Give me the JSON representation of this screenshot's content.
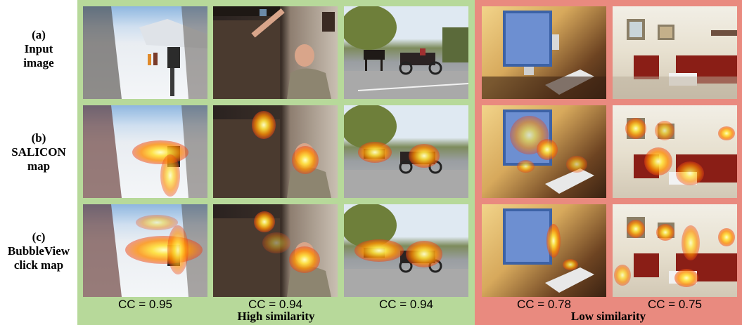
{
  "row_labels": [
    {
      "letter": "(a)",
      "line1": "Input",
      "line2": "image"
    },
    {
      "letter": "(b)",
      "line1": "SALICON",
      "line2": "map"
    },
    {
      "letter": "(c)",
      "line1": "BubbleView",
      "line2": "click map"
    }
  ],
  "columns": [
    {
      "scene": "snow-hikers",
      "cc": "CC = 0.95"
    },
    {
      "scene": "man-reaching",
      "cc": "CC = 0.94"
    },
    {
      "scene": "horse-carriage",
      "cc": "CC = 0.94"
    },
    {
      "scene": "desk-computer",
      "cc": "CC = 0.78"
    },
    {
      "scene": "living-room",
      "cc": "CC = 0.75"
    }
  ],
  "groups": {
    "high": {
      "label": "High similarity",
      "color": "#b7d99a"
    },
    "low": {
      "label": "Low similarity",
      "color": "#e98a7f"
    }
  }
}
